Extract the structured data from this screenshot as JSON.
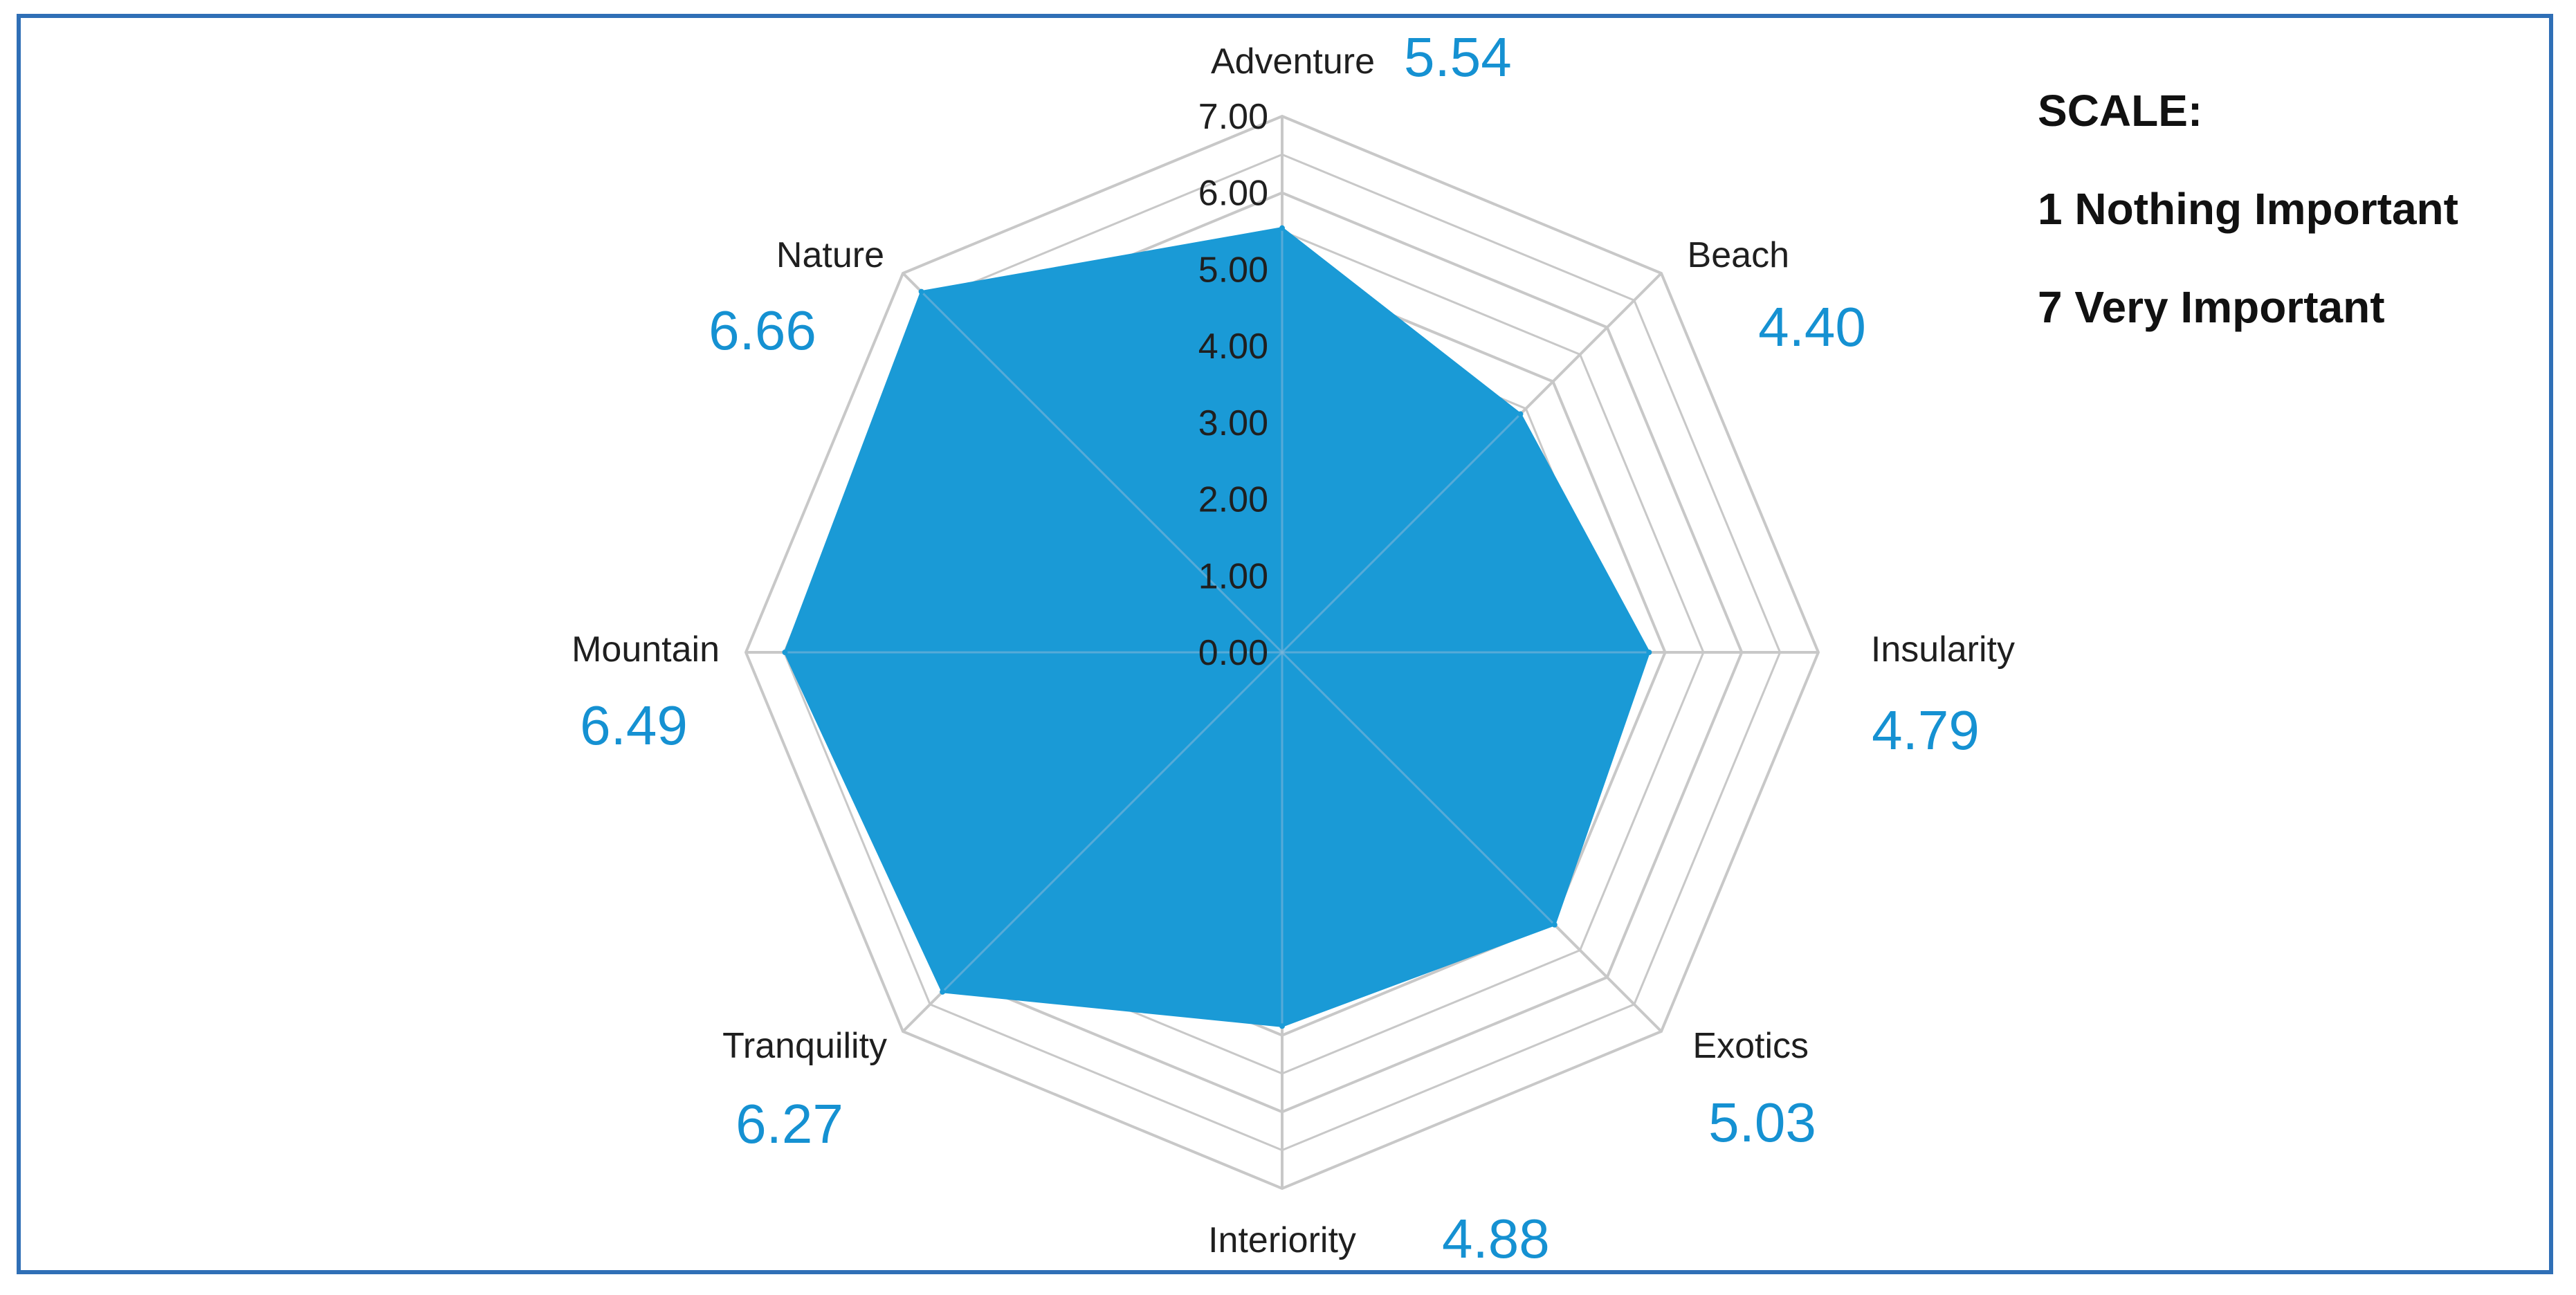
{
  "colors": {
    "frame": "#2f6fb6",
    "fill": "#1a9ad6",
    "grid": "#c8c8c8",
    "value_text": "#1591d2"
  },
  "chart_data": {
    "type": "radar",
    "title": "",
    "categories": [
      "Adventure",
      "Beach",
      "Insularity",
      "Exotics",
      "Interiority",
      "Tranquility",
      "Mountain",
      "Nature"
    ],
    "values": [
      5.54,
      4.4,
      4.79,
      5.03,
      4.88,
      6.27,
      6.49,
      6.66
    ],
    "value_labels": [
      "5.54",
      "4.40",
      "4.79",
      "5.03",
      "4.88",
      "6.27",
      "6.49",
      "6.66"
    ],
    "rlim": [
      0,
      7
    ],
    "ticks": [
      0,
      1,
      2,
      3,
      4,
      5,
      6,
      7
    ],
    "tick_labels": [
      "0.00",
      "1.00",
      "2.00",
      "3.00",
      "4.00",
      "5.00",
      "6.00",
      "7.00"
    ],
    "minor_grid_step": 0.5,
    "grid": true
  },
  "legend": {
    "title": "SCALE:",
    "low": "1 Nothing Important",
    "high": "7 Very Important"
  }
}
